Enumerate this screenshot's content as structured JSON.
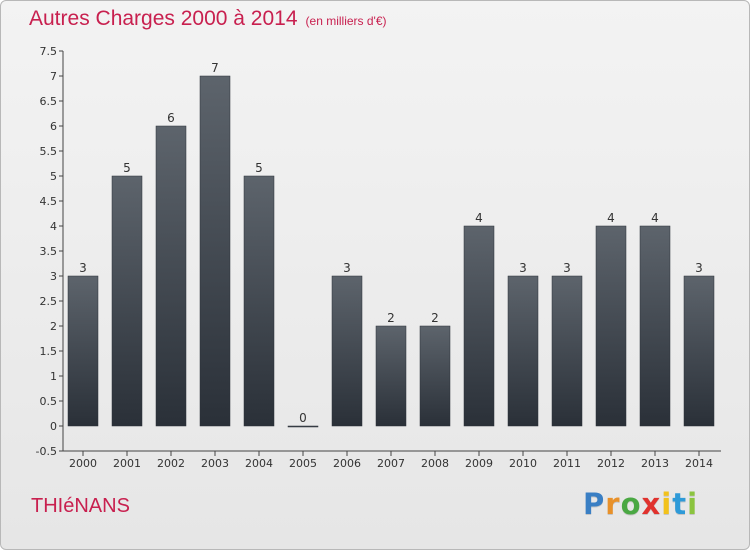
{
  "header": {
    "title": "Autres Charges 2000 à 2014",
    "subtitle": "(en milliers d'€)"
  },
  "footer": {
    "commune": "THIéNANS",
    "brand_letters": [
      "P",
      "r",
      "o",
      "x",
      "i",
      "t",
      "i"
    ],
    "brand_colors": [
      "#3a7fc4",
      "#e8912a",
      "#4aa843",
      "#e0322e",
      "#f2c21b",
      "#2e9ad8",
      "#8bc43f"
    ]
  },
  "chart_data": {
    "type": "bar",
    "title": "Autres Charges 2000 à 2014",
    "categories": [
      "2000",
      "2001",
      "2002",
      "2003",
      "2004",
      "2005",
      "2006",
      "2007",
      "2008",
      "2009",
      "2010",
      "2011",
      "2012",
      "2013",
      "2014"
    ],
    "values": [
      3,
      5,
      6,
      7,
      5,
      0,
      3,
      2,
      2,
      4,
      3,
      3,
      4,
      4,
      3
    ],
    "data_labels": [
      "3",
      "5",
      "6",
      "7",
      "5",
      "0",
      "3",
      "2",
      "2",
      "4",
      "3",
      "3",
      "4",
      "4",
      "3"
    ],
    "y_ticks": [
      "-0.5",
      "0",
      "0.5",
      "1",
      "1.5",
      "2",
      "2.5",
      "3",
      "3.5",
      "4",
      "4.5",
      "5",
      "5.5",
      "6",
      "6.5",
      "7",
      "7.5"
    ],
    "ylim": [
      -0.5,
      7.5
    ],
    "grid": false,
    "bar_color": "#4a5159"
  }
}
